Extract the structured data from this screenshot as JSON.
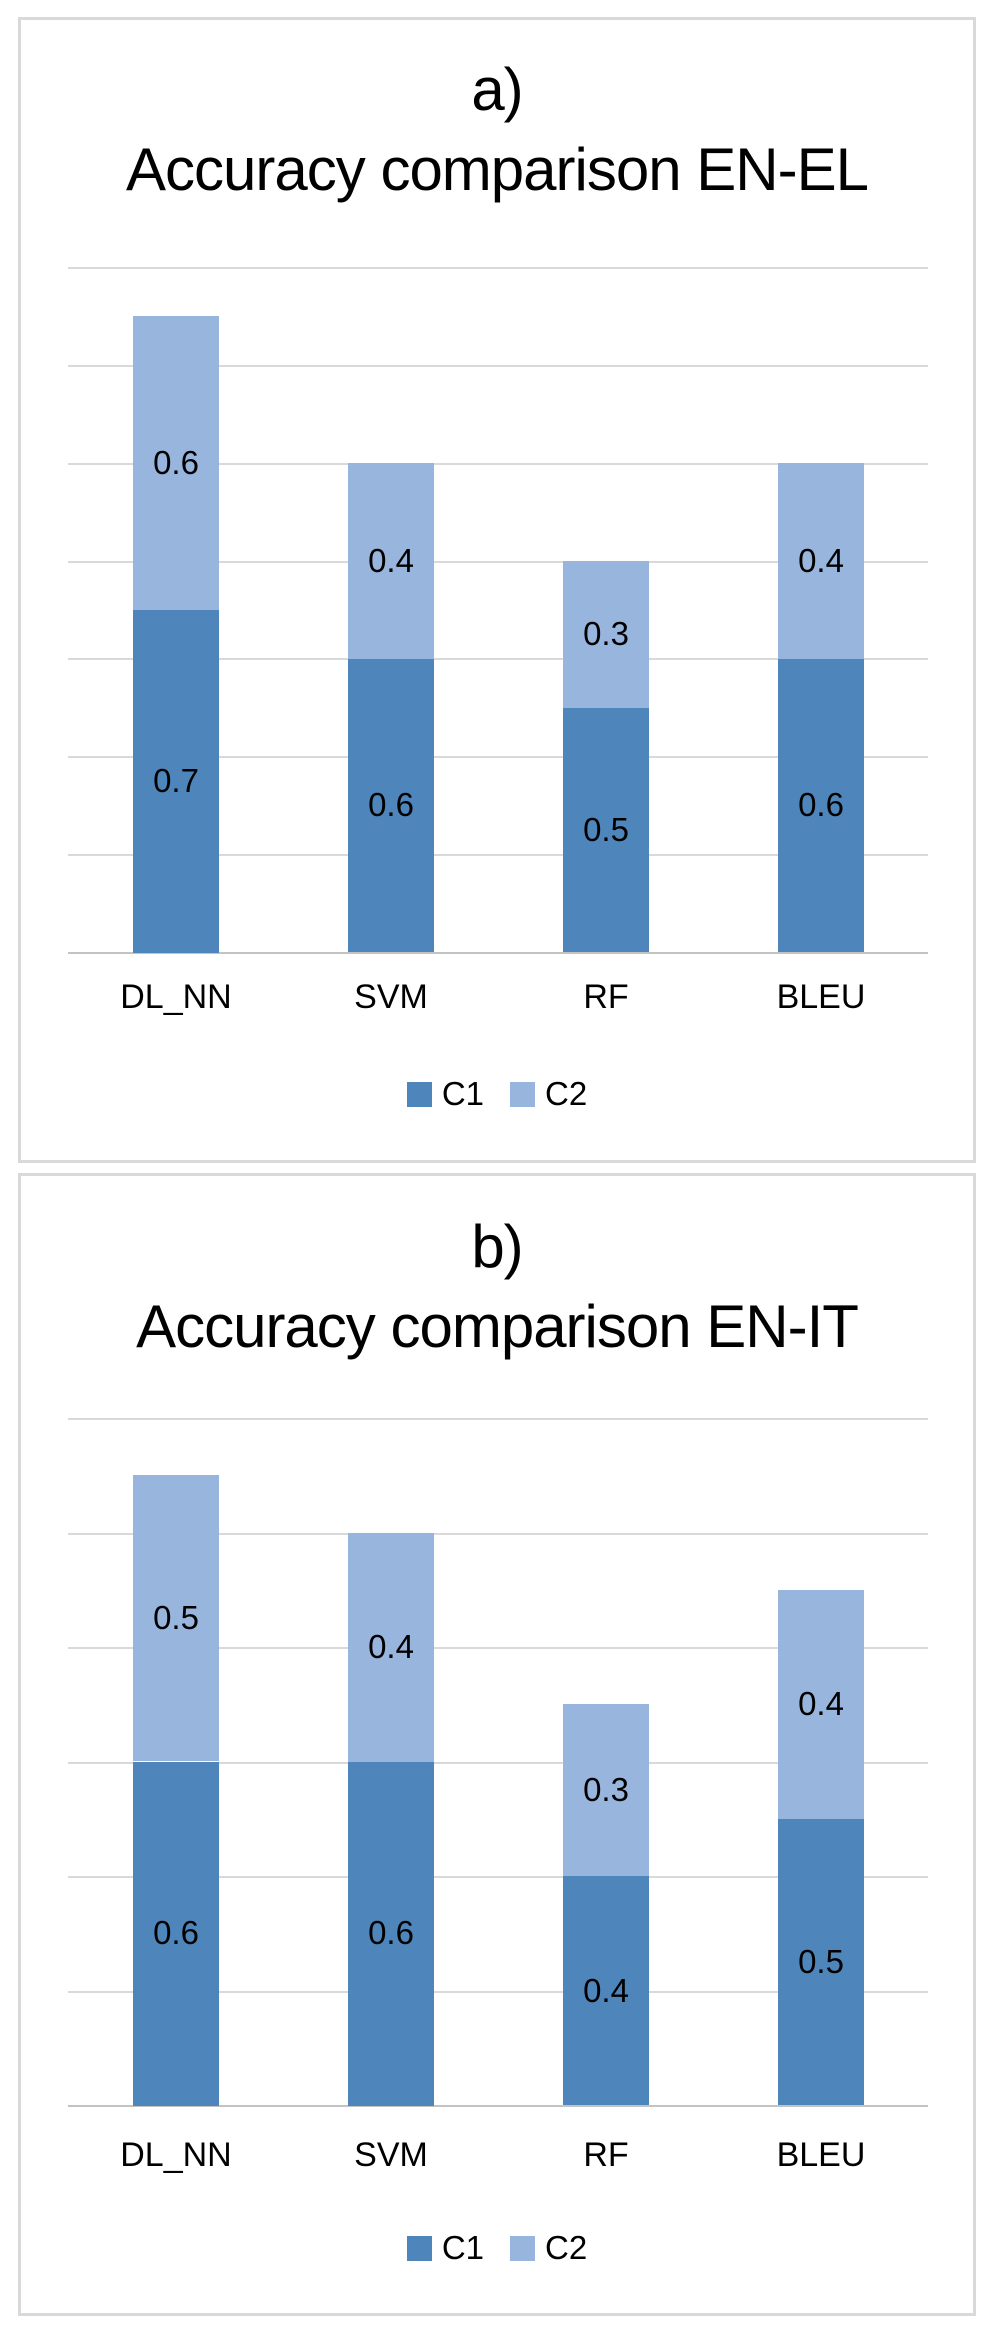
{
  "figure": {
    "background": "#ffffff",
    "panel_border_color": "#d9d9d9"
  },
  "colors": {
    "c1": "#4e86bc",
    "c2": "#97b5dd",
    "gridline": "#d9d9d9",
    "axis_line": "#c3c3c3",
    "text": "#000000"
  },
  "chart_data": [
    {
      "type": "bar",
      "stacked": true,
      "panel_label": "a)",
      "title": "Accuracy comparison EN-EL",
      "categories": [
        "DL_NN",
        "SVM",
        "RF",
        "BLEU"
      ],
      "series": [
        {
          "name": "C1",
          "color": "#4e86bc",
          "values": [
            0.7,
            0.6,
            0.5,
            0.6
          ]
        },
        {
          "name": "C2",
          "color": "#97b5dd",
          "values": [
            0.6,
            0.4,
            0.3,
            0.4
          ]
        }
      ],
      "bar_value_labels_visible": true,
      "ylim": [
        0,
        1.4
      ],
      "ytick_step": 0.2,
      "grid": true,
      "y_axis_numbers_visible": false,
      "legend_position": "bottom",
      "legend": [
        "C1",
        "C2"
      ]
    },
    {
      "type": "bar",
      "stacked": true,
      "panel_label": "b)",
      "title": "Accuracy comparison EN-IT",
      "categories": [
        "DL_NN",
        "SVM",
        "RF",
        "BLEU"
      ],
      "series": [
        {
          "name": "C1",
          "color": "#4e86bc",
          "values": [
            0.6,
            0.6,
            0.4,
            0.5
          ]
        },
        {
          "name": "C2",
          "color": "#97b5dd",
          "values": [
            0.5,
            0.4,
            0.3,
            0.4
          ]
        }
      ],
      "bar_value_labels_visible": true,
      "ylim": [
        0,
        1.2
      ],
      "ytick_step": 0.2,
      "grid": true,
      "y_axis_numbers_visible": false,
      "legend_position": "bottom",
      "legend": [
        "C1",
        "C2"
      ]
    }
  ]
}
